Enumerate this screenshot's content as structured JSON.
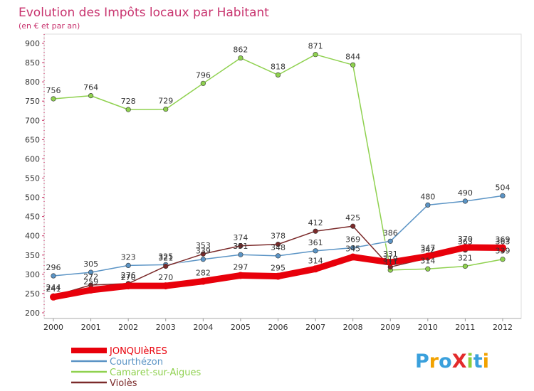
{
  "chart_data": {
    "type": "line",
    "title": "Evolution des Impôts locaux par Habitant",
    "subtitle": "(en € et par an)",
    "xlabel": "",
    "ylabel": "",
    "ylim": [
      200,
      900
    ],
    "yticks": [
      200,
      250,
      300,
      350,
      400,
      450,
      500,
      550,
      600,
      650,
      700,
      750,
      800,
      850,
      900
    ],
    "x": [
      "2000",
      "2001",
      "2002",
      "2003",
      "2004",
      "2005",
      "2006",
      "2007",
      "2008",
      "2009",
      "2010",
      "2011",
      "2012"
    ],
    "grid": false,
    "legend_position": "bottom-left",
    "series": [
      {
        "name": "JONQUIèRES",
        "color": "#e8000b",
        "values": [
          241,
          259,
          270,
          270,
          282,
          297,
          295,
          314,
          345,
          331,
          347,
          370,
          369
        ]
      },
      {
        "name": "Courthézon",
        "color": "#5b94c5",
        "values": [
          296,
          305,
          323,
          325,
          339,
          351,
          348,
          361,
          369,
          386,
          480,
          490,
          504
        ]
      },
      {
        "name": "Camaret-sur-Aigues",
        "color": "#8fd14f",
        "values": [
          756,
          764,
          728,
          729,
          796,
          862,
          818,
          871,
          844,
          311,
          314,
          321,
          339
        ]
      },
      {
        "name": "Violès",
        "color": "#7b2a2a",
        "values": [
          244,
          272,
          276,
          321,
          353,
          374,
          378,
          412,
          425,
          319,
          342,
          363,
          363
        ]
      }
    ]
  },
  "logo": {
    "text": "ProXiti"
  }
}
